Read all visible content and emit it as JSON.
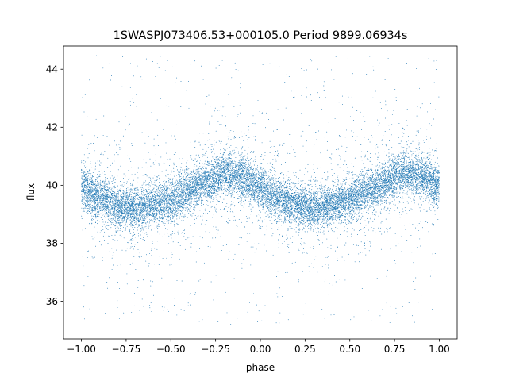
{
  "chart_data": {
    "type": "scatter",
    "title": "1SWASPJ073406.53+000105.0 Period 9899.06934s",
    "xlabel": "phase",
    "ylabel": "flux",
    "xlim": [
      -1.1,
      1.1
    ],
    "ylim": [
      34.7,
      44.8
    ],
    "xticks": [
      -1.0,
      -0.75,
      -0.5,
      -0.25,
      0.0,
      0.25,
      0.5,
      0.75,
      1.0
    ],
    "xtick_labels": [
      "−1.00",
      "−0.75",
      "−0.50",
      "−0.25",
      "0.00",
      "0.25",
      "0.50",
      "0.75",
      "1.00"
    ],
    "yticks": [
      36,
      38,
      40,
      42,
      44
    ],
    "ytick_labels": [
      "36",
      "38",
      "40",
      "42",
      "44"
    ],
    "grid": false,
    "marker_color": "#1f77b4",
    "x_range": [
      -1.0,
      1.0
    ],
    "series": [
      {
        "x": [
          -1.0,
          -0.9,
          -0.8,
          -0.7,
          -0.6,
          -0.5,
          -0.4,
          -0.3,
          -0.2,
          -0.1,
          0.0,
          0.1,
          0.2,
          0.3,
          0.4,
          0.5,
          0.6,
          0.7,
          0.8,
          0.9,
          1.0
        ],
        "y_mean": [
          39.9,
          39.6,
          39.3,
          39.2,
          39.3,
          39.5,
          39.8,
          40.1,
          40.4,
          40.3,
          39.9,
          39.6,
          39.3,
          39.2,
          39.3,
          39.5,
          39.8,
          40.1,
          40.4,
          40.3,
          40.0
        ],
        "scatter_sd": 0.35,
        "outlier_ylim": [
          35.2,
          44.5
        ]
      }
    ]
  }
}
